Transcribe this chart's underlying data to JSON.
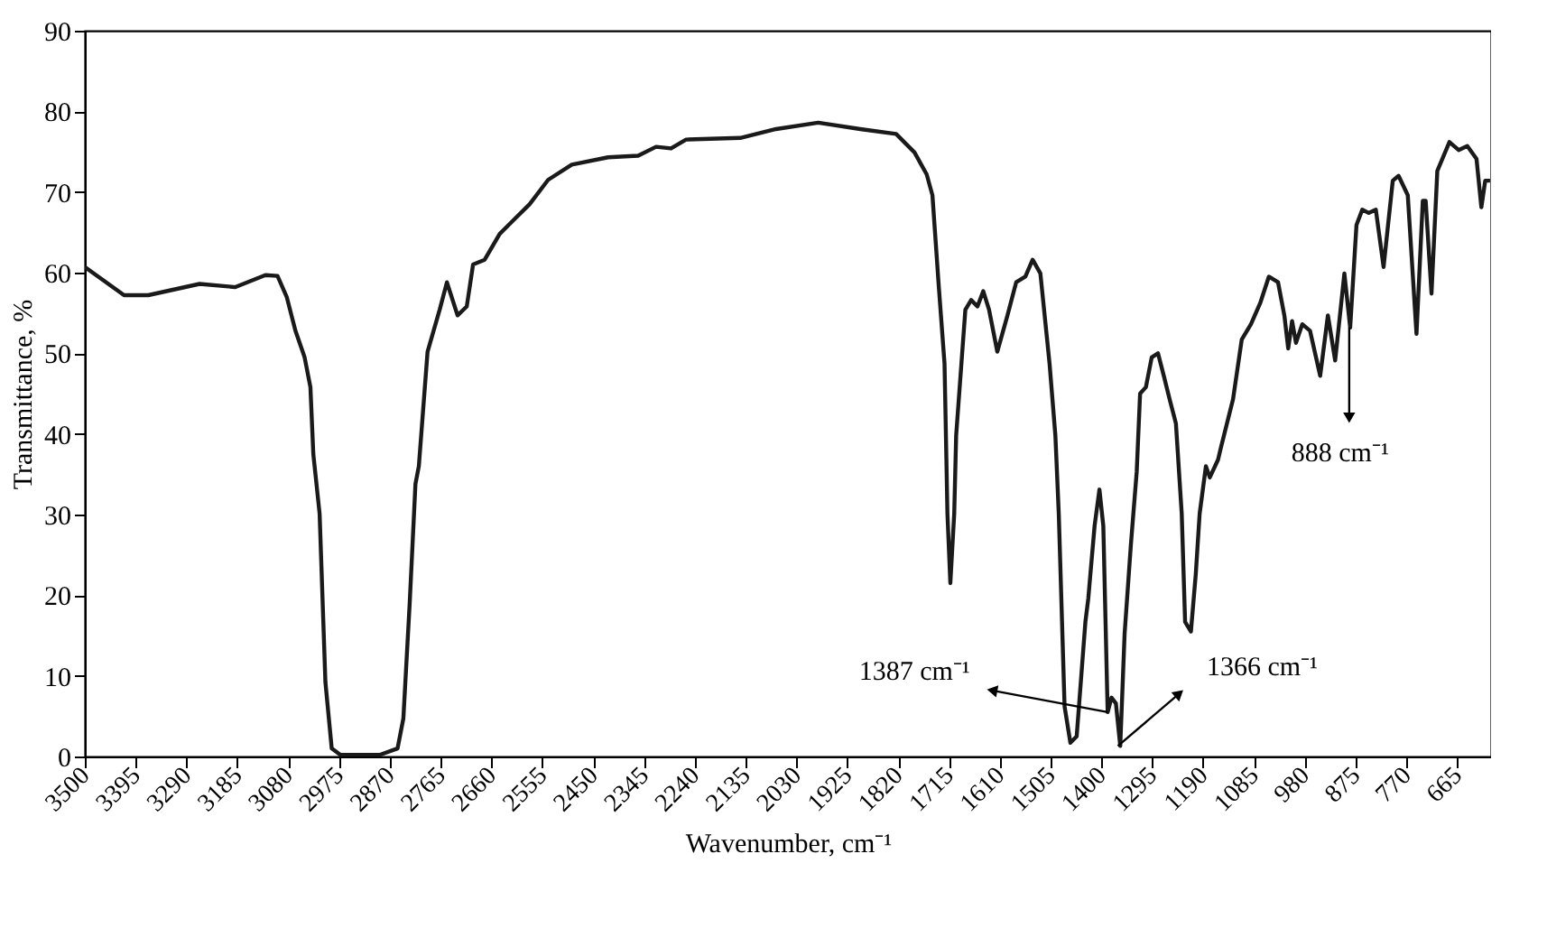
{
  "chart_data": {
    "type": "line",
    "xlabel": "Wavenumber, cm⁻¹",
    "ylabel": "Transmittance, %",
    "xlim": [
      3500,
      595
    ],
    "ylim": [
      0,
      90
    ],
    "xticks": [
      3500,
      3395,
      3290,
      3185,
      3080,
      2975,
      2870,
      2765,
      2660,
      2555,
      2450,
      2345,
      2240,
      2135,
      2030,
      1925,
      1820,
      1715,
      1610,
      1505,
      1400,
      1295,
      1190,
      1085,
      980,
      875,
      770,
      665
    ],
    "yticks": [
      0,
      10,
      20,
      30,
      40,
      50,
      60,
      70,
      80,
      90
    ],
    "grid": false,
    "marker": "none",
    "line_style": "solid",
    "series": [
      {
        "color": "#1a1a1a",
        "x": [
          3500,
          3419,
          3369,
          3263,
          3189,
          3127,
          3102,
          3083,
          3065,
          3046,
          3034,
          3028,
          3015,
          3003,
          2990,
          2972,
          2891,
          2854,
          2842,
          2829,
          2817,
          2810,
          2792,
          2767,
          2752,
          2730,
          2711,
          2698,
          2674,
          2643,
          2618,
          2581,
          2543,
          2494,
          2419,
          2357,
          2320,
          2289,
          2258,
          2146,
          2072,
          1985,
          1898,
          1824,
          1786,
          1761,
          1749,
          1736,
          1724,
          1718,
          1712,
          1704,
          1700,
          1681,
          1669,
          1656,
          1644,
          1632,
          1615,
          1594,
          1576,
          1557,
          1542,
          1526,
          1507,
          1495,
          1488,
          1476,
          1464,
          1451,
          1433,
          1427,
          1414,
          1404,
          1396,
          1387,
          1379,
          1370,
          1361,
          1352,
          1339,
          1327,
          1320,
          1308,
          1296,
          1283,
          1271,
          1259,
          1246,
          1234,
          1227,
          1215,
          1205,
          1197,
          1184,
          1176,
          1159,
          1153,
          1128,
          1110,
          1091,
          1072,
          1054,
          1035,
          1022,
          1014,
          1006,
          998,
          985,
          969,
          948,
          932,
          917,
          898,
          886,
          873,
          861,
          848,
          833,
          817,
          798,
          786,
          767,
          749,
          736,
          730,
          718,
          706,
          681,
          662,
          644,
          625,
          615,
          607,
          597
        ],
        "values": [
          60.7,
          57.2,
          57.2,
          58.6,
          58.2,
          59.7,
          59.6,
          57.0,
          52.8,
          49.5,
          45.8,
          37.5,
          30.1,
          9.2,
          1.0,
          0.2,
          0.2,
          1.0,
          4.7,
          18.9,
          33.8,
          36.0,
          50.2,
          55.4,
          58.8,
          54.7,
          55.8,
          61.0,
          61.6,
          64.8,
          66.3,
          68.5,
          71.5,
          73.4,
          74.3,
          74.5,
          75.6,
          75.4,
          76.5,
          76.7,
          77.8,
          78.6,
          77.8,
          77.2,
          74.9,
          72.2,
          69.6,
          58.4,
          48.7,
          30.1,
          21.5,
          30.1,
          39.8,
          55.4,
          56.6,
          55.8,
          57.7,
          55.4,
          50.2,
          54.7,
          58.8,
          59.5,
          61.6,
          59.9,
          48.7,
          39.8,
          30.1,
          6.2,
          1.7,
          2.5,
          16.7,
          19.6,
          28.6,
          33.1,
          28.6,
          5.5,
          7.3,
          6.6,
          1.3,
          15.2,
          26.3,
          35.3,
          45.0,
          45.8,
          49.5,
          50.0,
          47.2,
          44.3,
          41.3,
          30.1,
          16.7,
          15.5,
          22.6,
          30.1,
          36.0,
          34.6,
          36.8,
          38.3,
          44.3,
          51.7,
          53.6,
          56.2,
          59.5,
          58.8,
          54.7,
          50.6,
          54.0,
          51.3,
          53.6,
          52.8,
          47.2,
          54.7,
          49.1,
          59.9,
          53.2,
          65.9,
          67.8,
          67.4,
          67.8,
          60.7,
          71.4,
          72.0,
          69.6,
          52.4,
          68.9,
          68.9,
          57.4,
          72.6,
          76.2,
          75.2,
          75.7,
          74.1,
          68.1,
          71.4,
          71.4
        ]
      }
    ],
    "annotations": [
      {
        "text": "888 cm⁻¹",
        "x": 888,
        "y": 53.2
      },
      {
        "text": "1387 cm⁻¹",
        "x": 1387,
        "y": 5.5
      },
      {
        "text": "1366 cm⁻¹",
        "x": 1366,
        "y": 1.3
      }
    ]
  }
}
